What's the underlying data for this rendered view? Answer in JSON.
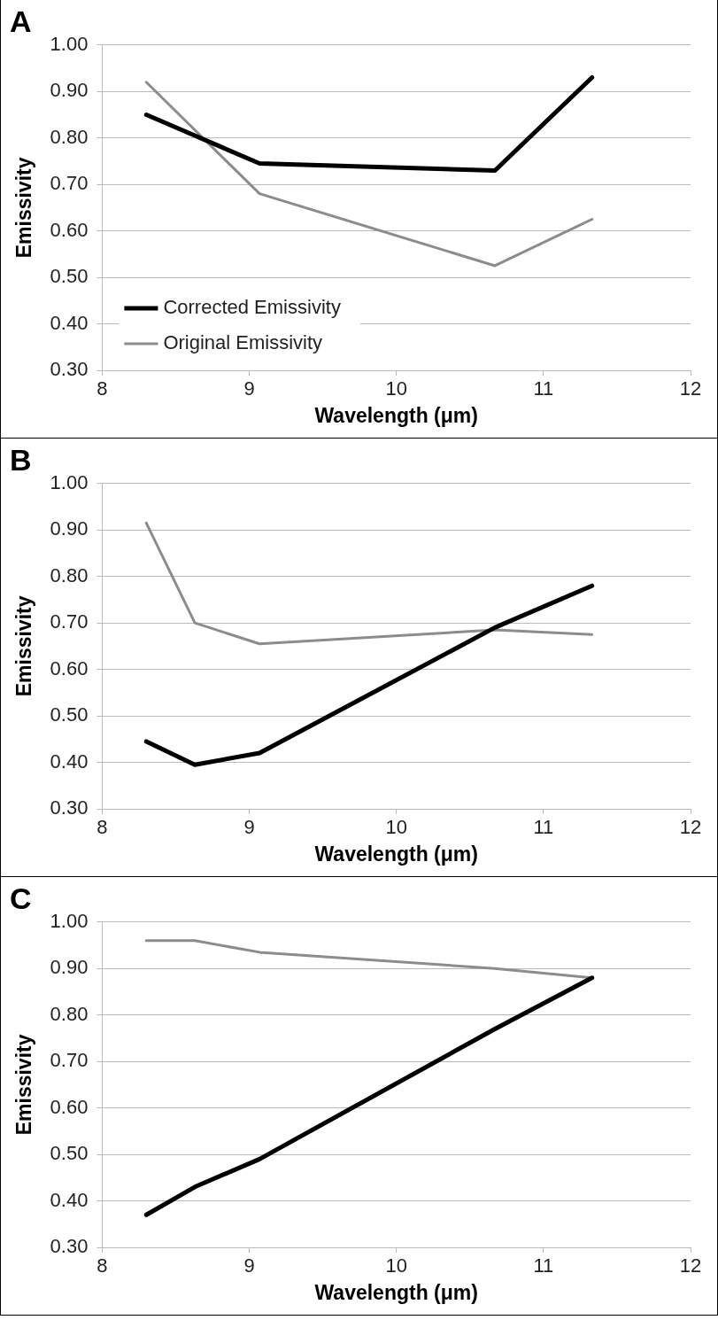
{
  "chart_data": [
    {
      "type": "line",
      "title": "A",
      "xlabel": "Wavelength (μm)",
      "ylabel": "Emissivity",
      "xlim": [
        8,
        12
      ],
      "xticks": [
        8,
        9,
        10,
        11,
        12
      ],
      "ylim": [
        0.3,
        1.0
      ],
      "yticks": [
        {
          "value": 0.3,
          "label": "0.30"
        },
        {
          "value": 0.4,
          "label": "0.40"
        },
        {
          "value": 0.5,
          "label": "0.50"
        },
        {
          "value": 0.6,
          "label": "0.60"
        },
        {
          "value": 0.7,
          "label": "0.70"
        },
        {
          "value": 0.8,
          "label": "0.80"
        },
        {
          "value": 0.9,
          "label": "0.90"
        },
        {
          "value": 1.0,
          "label": "1.00"
        }
      ],
      "grid": "y",
      "legend": "bottom left",
      "marker": "none",
      "x": [
        8.3,
        9.07,
        10.67,
        11.33
      ],
      "series": [
        {
          "name": "Corrected Emissivity",
          "color": "#000000",
          "values": [
            0.85,
            0.745,
            0.73,
            0.93
          ]
        },
        {
          "name": "Original Emissivity",
          "color": "#8c8c8c",
          "values": [
            0.92,
            0.68,
            0.525,
            0.625
          ]
        }
      ]
    },
    {
      "type": "line",
      "title": "B",
      "xlabel": "Wavelength (μm)",
      "ylabel": "Emissivity",
      "xlim": [
        8,
        12
      ],
      "xticks": [
        8,
        9,
        10,
        11,
        12
      ],
      "ylim": [
        0.3,
        1.0
      ],
      "yticks": [
        {
          "value": 0.3,
          "label": "0.30"
        },
        {
          "value": 0.4,
          "label": "0.40"
        },
        {
          "value": 0.5,
          "label": "0.50"
        },
        {
          "value": 0.6,
          "label": "0.60"
        },
        {
          "value": 0.7,
          "label": "0.70"
        },
        {
          "value": 0.8,
          "label": "0.80"
        },
        {
          "value": 0.9,
          "label": "0.90"
        },
        {
          "value": 1.0,
          "label": "1.00"
        }
      ],
      "grid": "y",
      "marker": "none",
      "x": [
        8.3,
        8.63,
        9.07,
        10.67,
        11.33
      ],
      "series": [
        {
          "color": "#000000",
          "values": [
            0.445,
            0.395,
            0.42,
            0.69,
            0.78
          ]
        },
        {
          "color": "#8c8c8c",
          "values": [
            0.915,
            0.7,
            0.655,
            0.685,
            0.675
          ]
        }
      ]
    },
    {
      "type": "line",
      "title": "C",
      "xlabel": "Wavelength (μm)",
      "ylabel": "Emissivity",
      "xlim": [
        8,
        12
      ],
      "xticks": [
        8,
        9,
        10,
        11,
        12
      ],
      "ylim": [
        0.3,
        1.0
      ],
      "yticks": [
        {
          "value": 0.3,
          "label": "0.30"
        },
        {
          "value": 0.4,
          "label": "0.40"
        },
        {
          "value": 0.5,
          "label": "0.50"
        },
        {
          "value": 0.6,
          "label": "0.60"
        },
        {
          "value": 0.7,
          "label": "0.70"
        },
        {
          "value": 0.8,
          "label": "0.80"
        },
        {
          "value": 0.9,
          "label": "0.90"
        },
        {
          "value": 1.0,
          "label": "1.00"
        }
      ],
      "grid": "y",
      "marker": "none",
      "x": [
        8.3,
        8.63,
        9.07,
        10.67,
        11.33
      ],
      "series": [
        {
          "color": "#000000",
          "values": [
            0.37,
            0.43,
            0.49,
            0.77,
            0.88
          ]
        },
        {
          "color": "#8c8c8c",
          "values": [
            0.96,
            0.96,
            0.935,
            0.9,
            0.88
          ]
        }
      ]
    }
  ]
}
